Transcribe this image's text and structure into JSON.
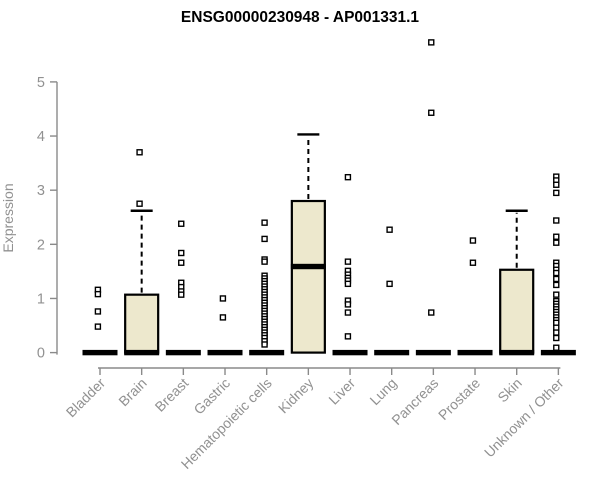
{
  "chart_data": {
    "type": "boxplot",
    "title": "ENSG00000230948 - AP001331.1",
    "ylabel": "Expression",
    "ylim": [
      0,
      5
    ],
    "ytick_labels": [
      "0",
      "1",
      "2",
      "3",
      "4",
      "5"
    ],
    "grid": false,
    "legend": false,
    "colors": {
      "box_fill": "#EDE8CD",
      "box_border": "#000000",
      "axis_line": "#8a8a8a",
      "axis_text": "#919191",
      "title_text": "#000000",
      "outlier_fill": "#ffffff"
    },
    "categories": [
      "Bladder",
      "Brain",
      "Breast",
      "Gastric",
      "Hematopoietic cells",
      "Kidney",
      "Liver",
      "Lung",
      "Pancreas",
      "Prostate",
      "Skin",
      "Unknown / Other"
    ],
    "boxes": [
      {
        "category": "Bladder",
        "q1": 0,
        "median": 0,
        "q3": 0,
        "whisker_low": 0,
        "whisker_high": 0,
        "outliers": [
          1.16,
          1.08,
          0.76,
          0.48
        ]
      },
      {
        "category": "Brain",
        "q1": 0,
        "median": 0,
        "q3": 1.07,
        "whisker_low": 0,
        "whisker_high": 2.62,
        "outliers": [
          3.7,
          2.75
        ]
      },
      {
        "category": "Breast",
        "q1": 0,
        "median": 0,
        "q3": 0,
        "whisker_low": 0,
        "whisker_high": 0,
        "outliers": [
          2.38,
          1.84,
          1.66,
          1.29,
          1.21,
          1.13,
          1.07
        ]
      },
      {
        "category": "Gastric",
        "q1": 0,
        "median": 0,
        "q3": 0,
        "whisker_low": 0,
        "whisker_high": 0,
        "outliers": [
          1.0,
          0.65
        ]
      },
      {
        "category": "Hematopoietic cells",
        "q1": 0,
        "median": 0,
        "q3": 0,
        "whisker_low": 0,
        "whisker_high": 0,
        "outliers": [
          2.4,
          2.1,
          1.72,
          1.68,
          1.42,
          1.37,
          1.32,
          1.27,
          1.22,
          1.17,
          1.12,
          1.07,
          1.02,
          0.97,
          0.92,
          0.87,
          0.82,
          0.77,
          0.72,
          0.67,
          0.62,
          0.57,
          0.52,
          0.47,
          0.42,
          0.37,
          0.32,
          0.27,
          0.21,
          0.15
        ]
      },
      {
        "category": "Kidney",
        "q1": 0,
        "median": 1.59,
        "q3": 2.8,
        "whisker_low": 0,
        "whisker_high": 4.03,
        "outliers": []
      },
      {
        "category": "Liver",
        "q1": 0,
        "median": 0,
        "q3": 0,
        "whisker_low": 0,
        "whisker_high": 0,
        "outliers": [
          3.24,
          1.68,
          1.51,
          1.44,
          1.38,
          1.33,
          1.27,
          0.96,
          0.89,
          0.74,
          0.3
        ]
      },
      {
        "category": "Lung",
        "q1": 0,
        "median": 0,
        "q3": 0,
        "whisker_low": 0,
        "whisker_high": 0,
        "outliers": [
          2.27,
          1.27
        ]
      },
      {
        "category": "Pancreas",
        "q1": 0,
        "median": 0,
        "q3": 0,
        "whisker_low": 0,
        "whisker_high": 0,
        "outliers": [
          5.73,
          4.43,
          0.74
        ]
      },
      {
        "category": "Prostate",
        "q1": 0,
        "median": 0,
        "q3": 0,
        "whisker_low": 0,
        "whisker_high": 0,
        "outliers": [
          2.07,
          1.66
        ]
      },
      {
        "category": "Skin",
        "q1": 0,
        "median": 0,
        "q3": 1.53,
        "whisker_low": 0,
        "whisker_high": 2.62,
        "outliers": []
      },
      {
        "category": "Unknown / Other",
        "q1": 0,
        "median": 0,
        "q3": 0,
        "whisker_low": 0,
        "whisker_high": 0,
        "outliers": [
          3.25,
          3.18,
          3.1,
          2.95,
          2.44,
          2.14,
          2.03,
          1.66,
          1.6,
          1.53,
          1.47,
          1.36,
          1.25,
          1.07,
          0.95,
          0.9,
          0.85,
          0.8,
          0.75,
          0.7,
          0.65,
          0.6,
          0.55,
          0.46,
          0.37,
          0.27,
          0.09
        ]
      }
    ]
  }
}
